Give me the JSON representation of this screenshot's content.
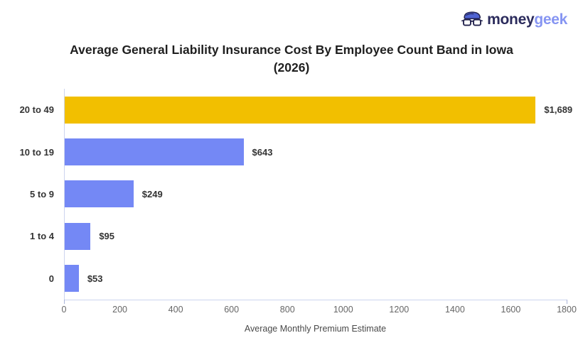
{
  "logo": {
    "money": "money",
    "geek": "geek"
  },
  "title": "Average General Liability Insurance Cost By Employee Count Band in Iowa\n(2026)",
  "chart_data": {
    "type": "bar",
    "orientation": "horizontal",
    "title": "Average General Liability Insurance Cost By Employee Count Band in Iowa (2026)",
    "categories": [
      "20 to 49",
      "10 to 19",
      "5 to 9",
      "1 to 4",
      "0"
    ],
    "values": [
      1689,
      643,
      249,
      95,
      53
    ],
    "value_labels": [
      "$1,689",
      "$643",
      "$249",
      "$95",
      "$53"
    ],
    "bar_colors": [
      "#F2BF00",
      "#7488F5",
      "#7488F5",
      "#7488F5",
      "#7488F5"
    ],
    "xlabel": "Average Monthly Premium Estimate",
    "ylabel": "",
    "xlim": [
      0,
      1800
    ],
    "x_ticks": [
      0,
      200,
      400,
      600,
      800,
      1000,
      1200,
      1400,
      1600,
      1800
    ],
    "grid": false,
    "legend": false,
    "colors": {
      "highlight_bar": "#F2BF00",
      "default_bar": "#7488F5",
      "axis_line": "#ccd4ee",
      "tick_text": "#666666",
      "label_text": "#333333",
      "title_text": "#1f1f1f"
    }
  }
}
